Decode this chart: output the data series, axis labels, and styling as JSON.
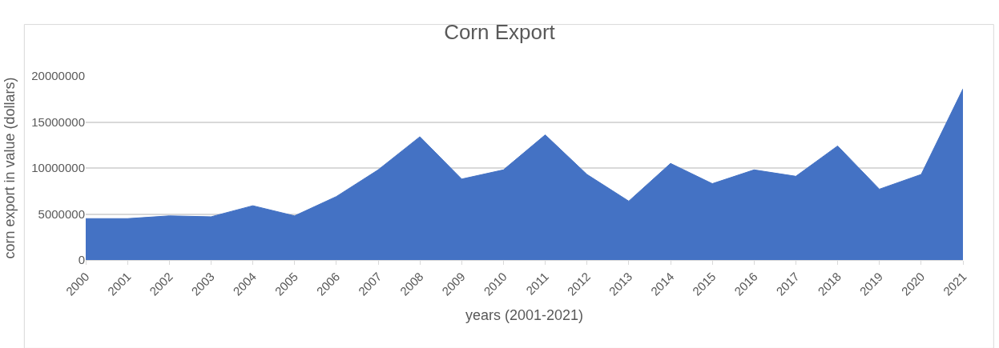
{
  "chart_data": {
    "type": "area",
    "title": "Corn Export",
    "xlabel": "years (2001-2021)",
    "ylabel": "corn export in value (dollars)",
    "categories": [
      "2000",
      "2001",
      "2002",
      "2003",
      "2004",
      "2005",
      "2006",
      "2007",
      "2008",
      "2009",
      "2010",
      "2011",
      "2012",
      "2013",
      "2014",
      "2015",
      "2016",
      "2017",
      "2018",
      "2019",
      "2020",
      "2021"
    ],
    "series": [
      {
        "color": "#4472c4",
        "values": [
          4500000,
          4500000,
          4800000,
          4700000,
          5900000,
          4800000,
          6900000,
          9800000,
          13400000,
          8800000,
          9800000,
          13600000,
          9300000,
          6400000,
          10500000,
          8300000,
          9800000,
          9100000,
          12400000,
          7700000,
          9300000,
          18600000
        ]
      }
    ],
    "ylim": [
      0,
      20000000
    ],
    "yticks": [
      0,
      5000000,
      10000000,
      15000000,
      20000000
    ],
    "grid": "y",
    "legend": false
  }
}
